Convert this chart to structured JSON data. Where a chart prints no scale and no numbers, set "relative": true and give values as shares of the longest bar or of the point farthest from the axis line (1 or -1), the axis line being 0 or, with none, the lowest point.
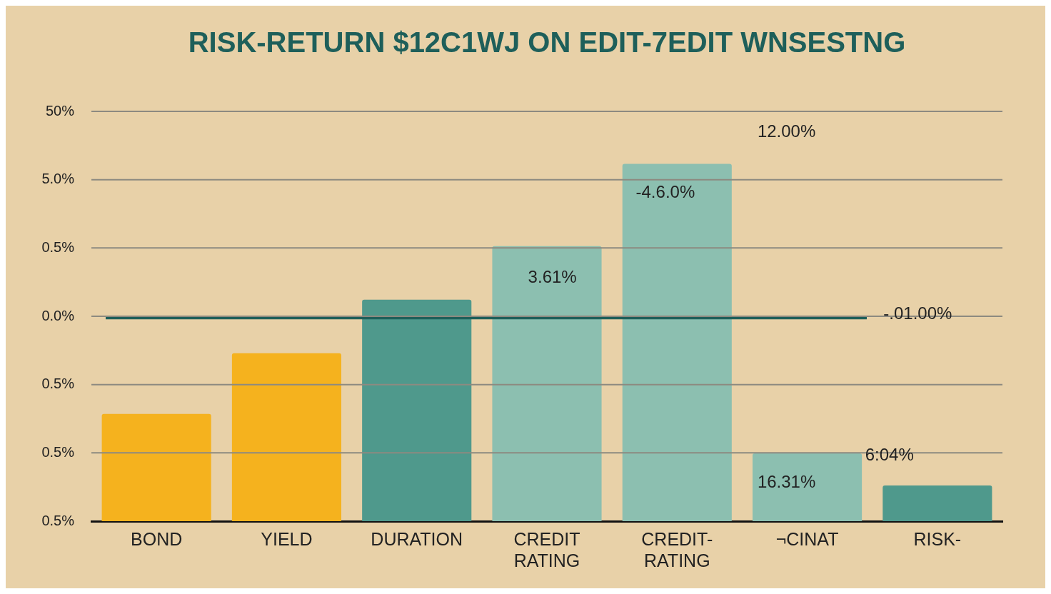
{
  "chart_data": {
    "type": "bar",
    "title": "RISK-RETURN $12C1WJ ON EDIT-7EDIT WNSESTNG",
    "categories": [
      "BOND",
      "YIELD",
      "DURATION",
      "CREDIT RATING",
      "CREDIT- RATING",
      "¬CINAT",
      "RISK-"
    ],
    "values": [
      0.3,
      0.47,
      0.62,
      0.77,
      1,
      0.19,
      0.1
    ],
    "colors": [
      "#f5b21e",
      "#f5b21e",
      "#4f998c",
      "#8cbfb0",
      "#8cbfb0",
      "#8cbfb0",
      "#4f998c"
    ],
    "relative": true,
    "grid": "y",
    "ref_lines": [
      {
        "axis": "y",
        "value": 0.57,
        "color": "#1e5f5a"
      }
    ],
    "annotations": [
      "50%",
      "5.0%",
      "0.5%",
      "0.0%",
      "0.5%",
      "0.5%",
      "0.5%",
      "12.00%",
      "-4.6.0%",
      "3.61%",
      "-.01.00%",
      "6:04%",
      "16.31%"
    ]
  }
}
